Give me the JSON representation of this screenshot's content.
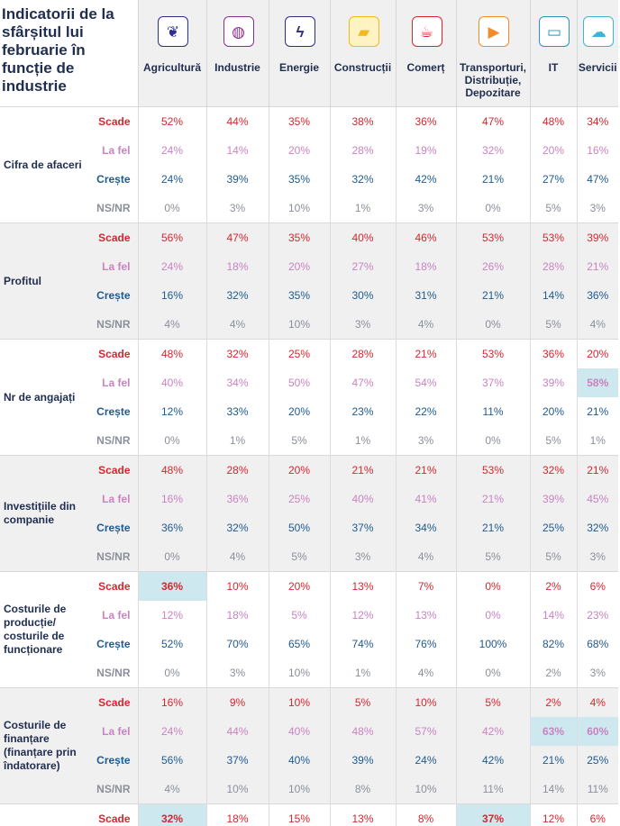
{
  "title": "Indicatorii de la sfârșitul lui februarie în funcție de industrie",
  "columns": [
    {
      "label": "Agricultură",
      "icon": "wheat-icon",
      "color": "#2b2f8f",
      "bg": "#ffffff"
    },
    {
      "label": "Industrie",
      "icon": "globe-icon",
      "color": "#8a2d8c",
      "bg": "#ffffff"
    },
    {
      "label": "Energie",
      "icon": "lightning-icon",
      "color": "#2d2f7a",
      "bg": "#ffffff"
    },
    {
      "label": "Construcții",
      "icon": "bulldozer-icon",
      "color": "#f3b81b",
      "bg": "#fff3c4"
    },
    {
      "label": "Comerț",
      "icon": "coffee-cup-icon",
      "color": "#d7262f",
      "bg": "#ffffff"
    },
    {
      "label": "Transporturi, Distribuție, Depozitare",
      "icon": "truck-icon",
      "color": "#f28c28",
      "bg": "#ffffff"
    },
    {
      "label": "IT",
      "icon": "monitor-icon",
      "color": "#2a93c4",
      "bg": "#ffffff"
    },
    {
      "label": "Servicii",
      "icon": "cloud-icon",
      "color": "#3fb3d4",
      "bg": "#ffffff"
    }
  ],
  "row_labels": [
    "Scade",
    "La fel",
    "Crește",
    "NS/NR"
  ],
  "groups": [
    {
      "name": "Cifra de afaceri",
      "rows": [
        [
          "52%",
          "44%",
          "35%",
          "38%",
          "36%",
          "47%",
          "48%",
          "34%"
        ],
        [
          "24%",
          "14%",
          "20%",
          "28%",
          "19%",
          "32%",
          "20%",
          "16%"
        ],
        [
          "24%",
          "39%",
          "35%",
          "32%",
          "42%",
          "21%",
          "27%",
          "47%"
        ],
        [
          "0%",
          "3%",
          "10%",
          "1%",
          "3%",
          "0%",
          "5%",
          "3%"
        ]
      ]
    },
    {
      "name": "Profitul",
      "rows": [
        [
          "56%",
          "47%",
          "35%",
          "40%",
          "46%",
          "53%",
          "53%",
          "39%"
        ],
        [
          "24%",
          "18%",
          "20%",
          "27%",
          "18%",
          "26%",
          "28%",
          "21%"
        ],
        [
          "16%",
          "32%",
          "35%",
          "30%",
          "31%",
          "21%",
          "14%",
          "36%"
        ],
        [
          "4%",
          "4%",
          "10%",
          "3%",
          "4%",
          "0%",
          "5%",
          "4%"
        ]
      ]
    },
    {
      "name": "Nr de angajați",
      "rows": [
        [
          "48%",
          "32%",
          "25%",
          "28%",
          "21%",
          "53%",
          "36%",
          "20%"
        ],
        [
          "40%",
          "34%",
          "50%",
          "47%",
          "54%",
          "37%",
          "39%",
          "58%"
        ],
        [
          "12%",
          "33%",
          "20%",
          "23%",
          "22%",
          "11%",
          "20%",
          "21%"
        ],
        [
          "0%",
          "1%",
          "5%",
          "1%",
          "3%",
          "0%",
          "5%",
          "1%"
        ]
      ]
    },
    {
      "name": "Investițiile din companie",
      "rows": [
        [
          "48%",
          "28%",
          "20%",
          "21%",
          "21%",
          "53%",
          "32%",
          "21%"
        ],
        [
          "16%",
          "36%",
          "25%",
          "40%",
          "41%",
          "21%",
          "39%",
          "45%"
        ],
        [
          "36%",
          "32%",
          "50%",
          "37%",
          "34%",
          "21%",
          "25%",
          "32%"
        ],
        [
          "0%",
          "4%",
          "5%",
          "3%",
          "4%",
          "5%",
          "5%",
          "3%"
        ]
      ]
    },
    {
      "name": "Costurile de producție/ costurile de funcționare",
      "rows": [
        [
          "36%",
          "10%",
          "20%",
          "13%",
          "7%",
          "0%",
          "2%",
          "6%"
        ],
        [
          "12%",
          "18%",
          "5%",
          "12%",
          "13%",
          "0%",
          "14%",
          "23%"
        ],
        [
          "52%",
          "70%",
          "65%",
          "74%",
          "76%",
          "100%",
          "82%",
          "68%"
        ],
        [
          "0%",
          "3%",
          "10%",
          "1%",
          "4%",
          "0%",
          "2%",
          "3%"
        ]
      ]
    },
    {
      "name": "Costurile de finanțare (finanțare prin îndatorare)",
      "rows": [
        [
          "16%",
          "9%",
          "10%",
          "5%",
          "10%",
          "5%",
          "2%",
          "4%"
        ],
        [
          "24%",
          "44%",
          "40%",
          "48%",
          "57%",
          "42%",
          "63%",
          "60%"
        ],
        [
          "56%",
          "37%",
          "40%",
          "39%",
          "24%",
          "42%",
          "21%",
          "25%"
        ],
        [
          "4%",
          "10%",
          "10%",
          "8%",
          "10%",
          "11%",
          "14%",
          "11%"
        ]
      ]
    },
    {
      "name": "",
      "rows": [
        [
          "32%",
          "18%",
          "15%",
          "13%",
          "8%",
          "37%",
          "12%",
          "6%"
        ]
      ]
    }
  ],
  "highlights": [
    [
      2,
      1,
      7
    ],
    [
      4,
      0,
      0
    ],
    [
      5,
      1,
      6
    ],
    [
      5,
      1,
      7
    ],
    [
      6,
      0,
      0
    ],
    [
      6,
      0,
      5
    ]
  ]
}
